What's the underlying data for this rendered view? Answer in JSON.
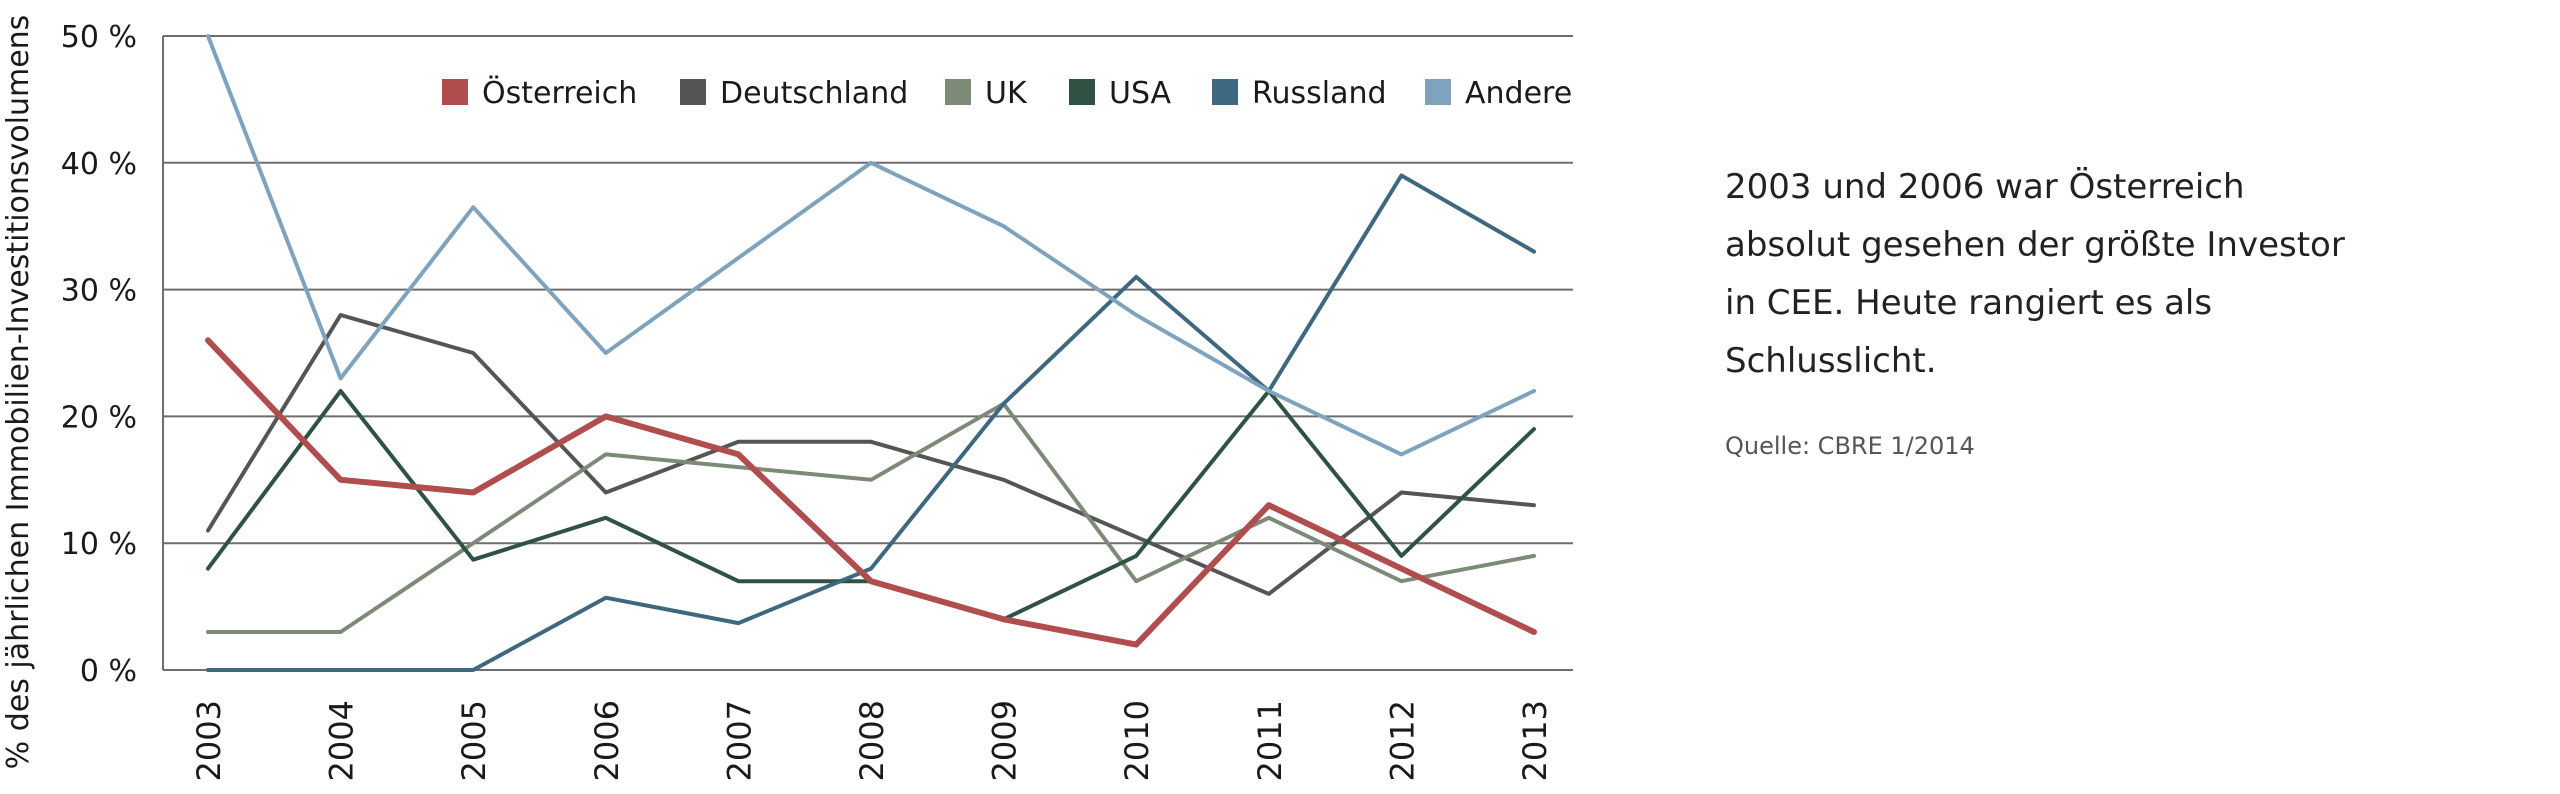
{
  "chart_data": {
    "type": "line",
    "ylabel": "% des jährlichen Immobilien-Investitionsvolumens",
    "xlabel": "",
    "ylim": [
      0,
      50
    ],
    "y_ticks": [
      0,
      10,
      20,
      30,
      40,
      50
    ],
    "y_tick_labels": [
      "0 %",
      "10 %",
      "20 %",
      "30 %",
      "40 %",
      "50 %"
    ],
    "x": [
      "2003",
      "2004",
      "2005",
      "2006",
      "2007",
      "2008",
      "2009",
      "2010",
      "2011",
      "2012",
      "2013"
    ],
    "grid": "horizontal",
    "legend_position": "top-right",
    "series": [
      {
        "name": "Deutschland",
        "color": "#555555",
        "values": [
          11,
          28,
          25,
          14,
          18,
          18,
          15,
          10.5,
          6,
          14,
          13
        ]
      },
      {
        "name": "UK",
        "color": "#7e8a78",
        "values": [
          3,
          3,
          10,
          17,
          16,
          15,
          21,
          7,
          12,
          7,
          9
        ]
      },
      {
        "name": "USA",
        "color": "#2f5242",
        "values": [
          8,
          22,
          8.7,
          12,
          7,
          7,
          4,
          9,
          22,
          9,
          19
        ]
      },
      {
        "name": "Russland",
        "color": "#3d6880",
        "values": [
          0,
          0,
          0,
          5.7,
          3.7,
          8,
          21,
          31,
          22,
          39,
          33
        ]
      },
      {
        "name": "Andere",
        "color": "#7fa3bd",
        "values": [
          50,
          23,
          36.5,
          25,
          32.5,
          40,
          35,
          28,
          22,
          17,
          22
        ]
      },
      {
        "name": "Österreich",
        "color": "#b04d4e",
        "values": [
          26,
          15,
          14,
          20,
          17,
          7,
          4,
          2,
          13,
          8,
          3
        ]
      }
    ],
    "legend_order": [
      "Österreich",
      "Deutschland",
      "UK",
      "USA",
      "Russland",
      "Andere"
    ]
  },
  "note": {
    "text": "2003 und 2006 war Österreich absolut gesehen der größte Investor in CEE. Heute rangiert es als Schlusslicht.",
    "source": "Quelle: CBRE 1/2014"
  }
}
